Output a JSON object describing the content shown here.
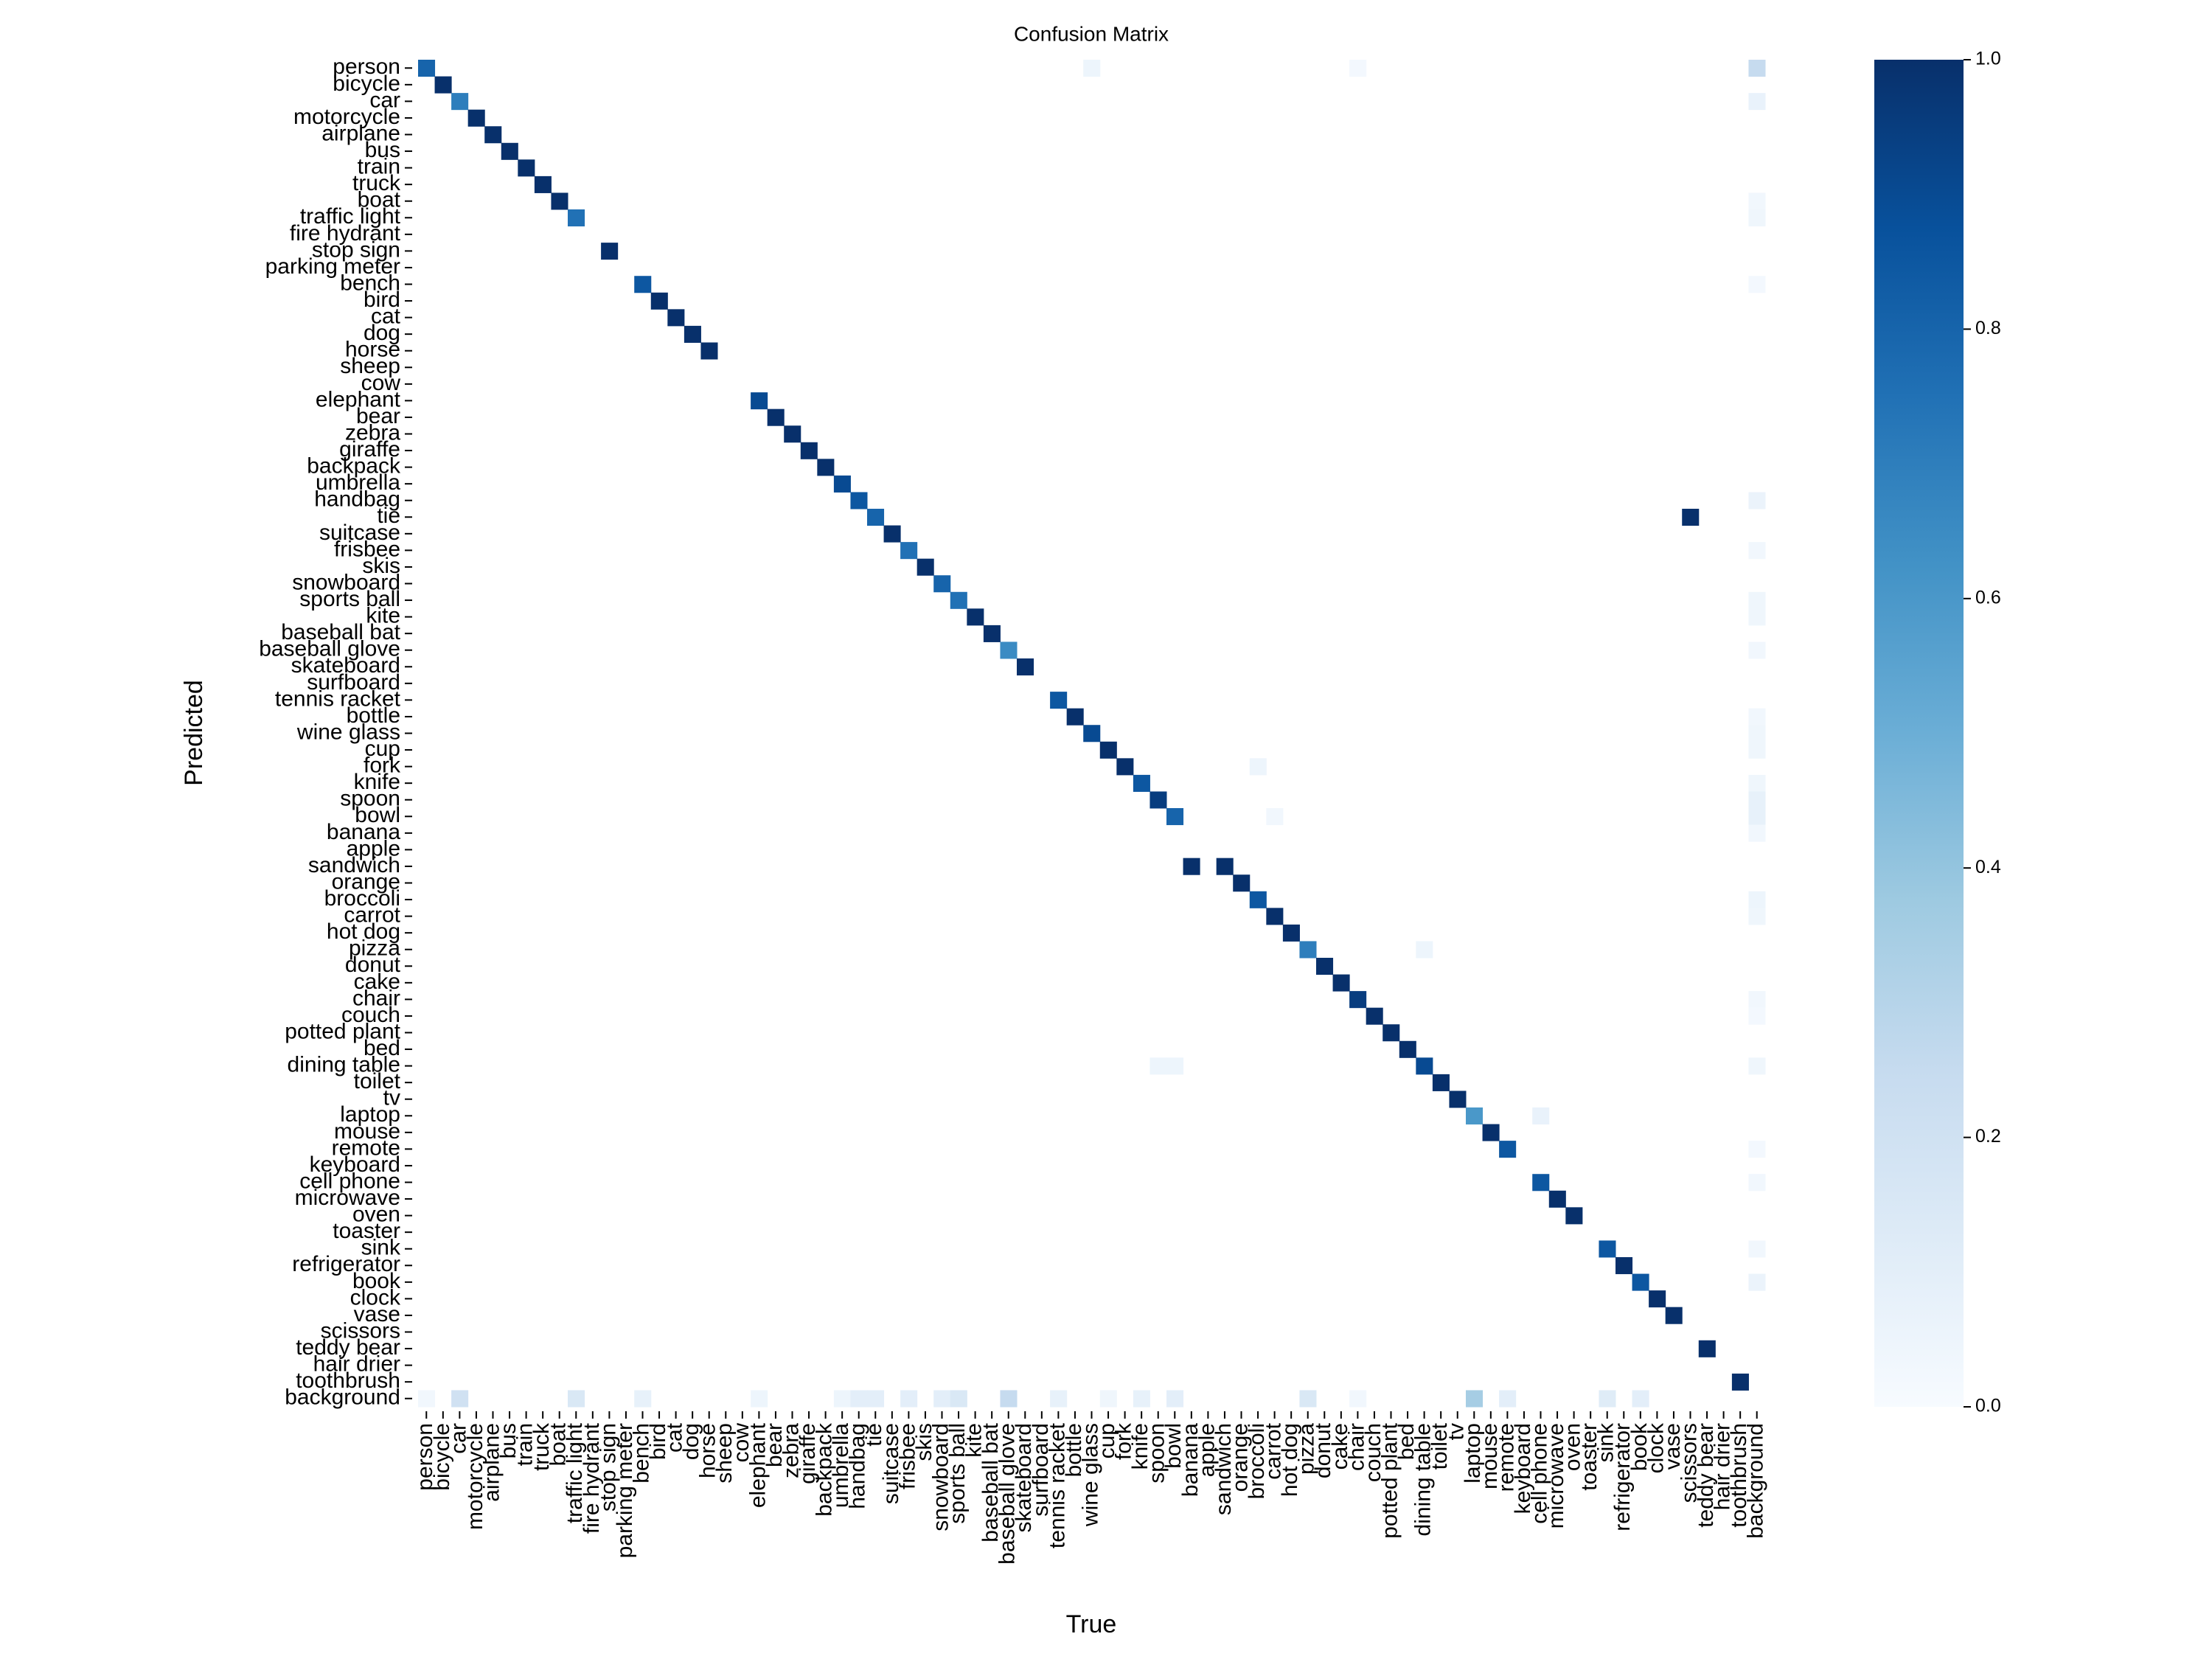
{
  "chart_data": {
    "type": "heatmap",
    "title": "Confusion Matrix",
    "x_label": "True",
    "y_label": "Predicted",
    "categories": [
      "person",
      "bicycle",
      "car",
      "motorcycle",
      "airplane",
      "bus",
      "train",
      "truck",
      "boat",
      "traffic light",
      "fire hydrant",
      "stop sign",
      "parking meter",
      "bench",
      "bird",
      "cat",
      "dog",
      "horse",
      "sheep",
      "cow",
      "elephant",
      "bear",
      "zebra",
      "giraffe",
      "backpack",
      "umbrella",
      "handbag",
      "tie",
      "suitcase",
      "frisbee",
      "skis",
      "snowboard",
      "sports ball",
      "kite",
      "baseball bat",
      "baseball glove",
      "skateboard",
      "surfboard",
      "tennis racket",
      "bottle",
      "wine glass",
      "cup",
      "fork",
      "knife",
      "spoon",
      "bowl",
      "banana",
      "apple",
      "sandwich",
      "orange",
      "broccoli",
      "carrot",
      "hot dog",
      "pizza",
      "donut",
      "cake",
      "chair",
      "couch",
      "potted plant",
      "bed",
      "dining table",
      "toilet",
      "tv",
      "laptop",
      "mouse",
      "remote",
      "keyboard",
      "cell phone",
      "microwave",
      "oven",
      "toaster",
      "sink",
      "refrigerator",
      "book",
      "clock",
      "vase",
      "scissors",
      "teddy bear",
      "hair drier",
      "toothbrush",
      "background"
    ],
    "cells": [
      [
        0,
        0,
        0.8
      ],
      [
        0,
        40,
        0.05
      ],
      [
        0,
        56,
        0.02
      ],
      [
        0,
        80,
        0.25
      ],
      [
        1,
        1,
        1.0
      ],
      [
        2,
        2,
        0.7
      ],
      [
        2,
        80,
        0.07
      ],
      [
        3,
        3,
        1.0
      ],
      [
        4,
        4,
        1.0
      ],
      [
        5,
        5,
        1.0
      ],
      [
        6,
        6,
        1.0
      ],
      [
        7,
        7,
        1.0
      ],
      [
        8,
        8,
        1.0
      ],
      [
        8,
        80,
        0.03
      ],
      [
        9,
        9,
        0.75
      ],
      [
        9,
        80,
        0.04
      ],
      [
        11,
        11,
        1.0
      ],
      [
        13,
        13,
        0.85
      ],
      [
        13,
        80,
        0.02
      ],
      [
        14,
        14,
        1.0
      ],
      [
        15,
        15,
        1.0
      ],
      [
        16,
        16,
        1.0
      ],
      [
        17,
        17,
        1.0
      ],
      [
        20,
        20,
        0.9
      ],
      [
        21,
        21,
        1.0
      ],
      [
        22,
        22,
        1.0
      ],
      [
        23,
        23,
        1.0
      ],
      [
        24,
        24,
        1.0
      ],
      [
        25,
        25,
        0.9
      ],
      [
        26,
        26,
        0.85
      ],
      [
        26,
        80,
        0.06
      ],
      [
        27,
        27,
        0.8
      ],
      [
        27,
        76,
        1.0
      ],
      [
        28,
        28,
        1.0
      ],
      [
        29,
        29,
        0.75
      ],
      [
        29,
        80,
        0.03
      ],
      [
        30,
        30,
        1.0
      ],
      [
        31,
        31,
        0.8
      ],
      [
        32,
        32,
        0.75
      ],
      [
        32,
        80,
        0.04
      ],
      [
        33,
        33,
        1.0
      ],
      [
        33,
        80,
        0.04
      ],
      [
        34,
        34,
        1.0
      ],
      [
        35,
        35,
        0.65
      ],
      [
        35,
        80,
        0.03
      ],
      [
        36,
        36,
        1.0
      ],
      [
        38,
        38,
        0.85
      ],
      [
        39,
        39,
        1.0
      ],
      [
        39,
        80,
        0.03
      ],
      [
        40,
        40,
        0.9
      ],
      [
        40,
        80,
        0.04
      ],
      [
        41,
        41,
        1.0
      ],
      [
        41,
        80,
        0.04
      ],
      [
        42,
        42,
        1.0
      ],
      [
        42,
        50,
        0.05
      ],
      [
        43,
        43,
        0.85
      ],
      [
        43,
        80,
        0.04
      ],
      [
        44,
        44,
        0.95
      ],
      [
        44,
        80,
        0.08
      ],
      [
        45,
        45,
        0.8
      ],
      [
        45,
        51,
        0.03
      ],
      [
        45,
        80,
        0.08
      ],
      [
        46,
        80,
        0.03
      ],
      [
        48,
        46,
        1.0
      ],
      [
        48,
        48,
        1.0
      ],
      [
        49,
        49,
        1.0
      ],
      [
        50,
        50,
        0.85
      ],
      [
        50,
        80,
        0.05
      ],
      [
        51,
        51,
        1.0
      ],
      [
        51,
        80,
        0.04
      ],
      [
        52,
        52,
        1.0
      ],
      [
        53,
        53,
        0.7
      ],
      [
        53,
        60,
        0.05
      ],
      [
        54,
        54,
        1.0
      ],
      [
        55,
        55,
        1.0
      ],
      [
        56,
        56,
        0.95
      ],
      [
        56,
        80,
        0.03
      ],
      [
        57,
        57,
        1.0
      ],
      [
        57,
        80,
        0.02
      ],
      [
        58,
        58,
        1.0
      ],
      [
        59,
        59,
        1.0
      ],
      [
        60,
        60,
        0.9
      ],
      [
        60,
        44,
        0.05
      ],
      [
        60,
        45,
        0.05
      ],
      [
        60,
        80,
        0.04
      ],
      [
        61,
        61,
        1.0
      ],
      [
        62,
        62,
        1.0
      ],
      [
        63,
        63,
        0.6
      ],
      [
        63,
        67,
        0.07
      ],
      [
        64,
        64,
        1.0
      ],
      [
        65,
        65,
        0.85
      ],
      [
        65,
        80,
        0.02
      ],
      [
        67,
        67,
        0.85
      ],
      [
        67,
        80,
        0.03
      ],
      [
        68,
        68,
        1.0
      ],
      [
        69,
        69,
        1.0
      ],
      [
        71,
        71,
        0.85
      ],
      [
        71,
        80,
        0.03
      ],
      [
        72,
        72,
        1.0
      ],
      [
        73,
        73,
        0.85
      ],
      [
        73,
        80,
        0.06
      ],
      [
        74,
        74,
        1.0
      ],
      [
        75,
        75,
        1.0
      ],
      [
        77,
        77,
        1.0
      ],
      [
        79,
        79,
        1.0
      ],
      [
        80,
        0,
        0.03
      ],
      [
        80,
        2,
        0.2
      ],
      [
        80,
        9,
        0.15
      ],
      [
        80,
        13,
        0.08
      ],
      [
        80,
        20,
        0.05
      ],
      [
        80,
        25,
        0.05
      ],
      [
        80,
        26,
        0.1
      ],
      [
        80,
        27,
        0.1
      ],
      [
        80,
        29,
        0.1
      ],
      [
        80,
        31,
        0.1
      ],
      [
        80,
        32,
        0.15
      ],
      [
        80,
        35,
        0.25
      ],
      [
        80,
        38,
        0.08
      ],
      [
        80,
        41,
        0.04
      ],
      [
        80,
        43,
        0.08
      ],
      [
        80,
        45,
        0.1
      ],
      [
        80,
        53,
        0.15
      ],
      [
        80,
        56,
        0.03
      ],
      [
        80,
        63,
        0.35
      ],
      [
        80,
        65,
        0.1
      ],
      [
        80,
        71,
        0.12
      ],
      [
        80,
        73,
        0.1
      ]
    ],
    "colorscale": [
      "#f7fbff",
      "#deebf7",
      "#c6dbef",
      "#9ecae1",
      "#6baed6",
      "#4292c6",
      "#2171b5",
      "#08519c",
      "#08306b"
    ],
    "clim": [
      0,
      1
    ],
    "cticks": [
      {
        "value": 0,
        "label": "0.0"
      },
      {
        "value": 0.2,
        "label": "0.2"
      },
      {
        "value": 0.4,
        "label": "0.4"
      },
      {
        "value": 0.6,
        "label": "0.6"
      },
      {
        "value": 0.8,
        "label": "0.8"
      },
      {
        "value": 1,
        "label": "1.0"
      }
    ]
  }
}
